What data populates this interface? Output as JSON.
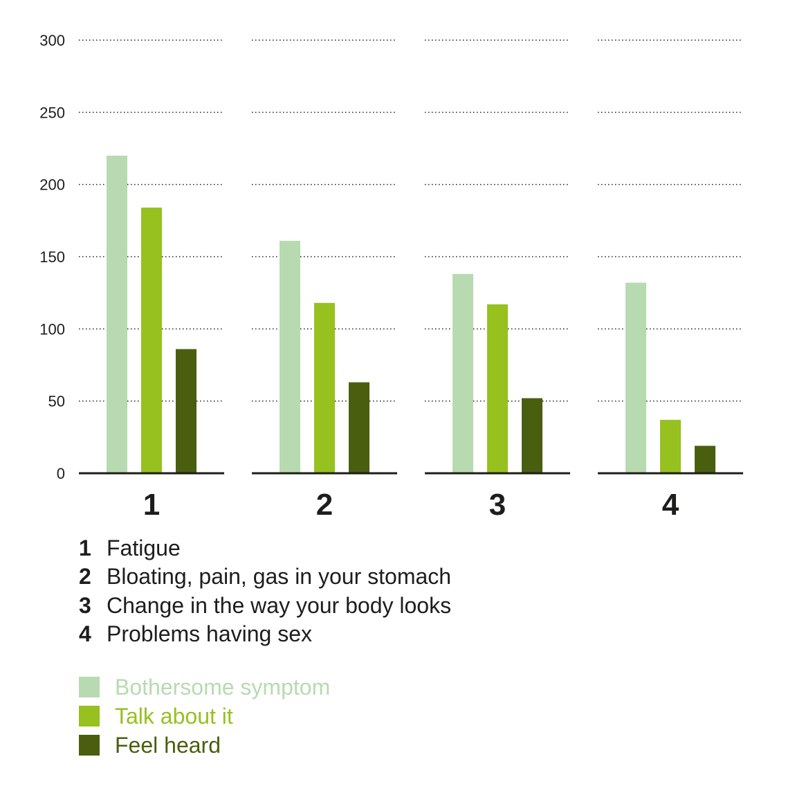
{
  "chart_data": {
    "type": "bar",
    "categories": [
      "1",
      "2",
      "3",
      "4"
    ],
    "category_descriptions": [
      "Fatigue",
      "Bloating, pain, gas in your stomach",
      "Change in the way your body looks",
      "Problems having sex"
    ],
    "series": [
      {
        "name": "Bothersome symptom",
        "color": "#b8dab0",
        "values": [
          220,
          161,
          138,
          132
        ]
      },
      {
        "name": "Talk about it",
        "color": "#96c11f",
        "values": [
          184,
          118,
          117,
          37
        ]
      },
      {
        "name": "Feel heard",
        "color": "#4a5e10",
        "values": [
          86,
          63,
          52,
          19
        ]
      }
    ],
    "ylim": [
      0,
      300
    ],
    "yticks": [
      0,
      50,
      100,
      150,
      200,
      250,
      300
    ],
    "grid": true,
    "grid_style": "dotted",
    "legend_position": "bottom-left",
    "title": "",
    "xlabel": "",
    "ylabel": ""
  },
  "colors": {
    "axis": "#1d1d1b",
    "grid": "#1d1d1b",
    "text": "#1d1d1b"
  }
}
